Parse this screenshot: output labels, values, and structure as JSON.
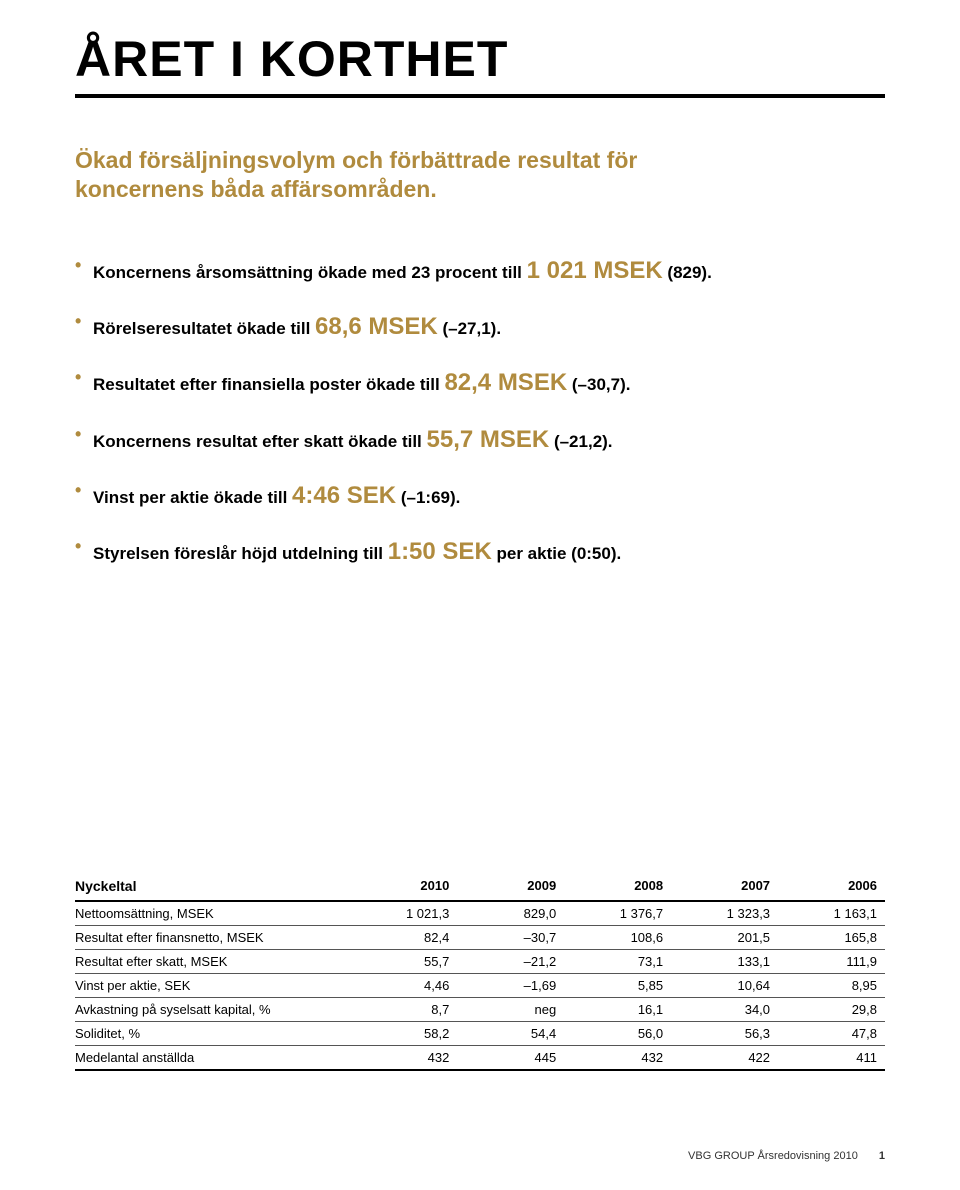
{
  "title": "ÅRET I KORTHET",
  "intro": "Ökad försäljningsvolym och förbättrade resultat för koncernens båda affärsområden.",
  "bullets": [
    {
      "pre": "Koncernens årsomsättning ökade med 23 procent till ",
      "hi": "1 021 MSEK",
      "post": " (829)."
    },
    {
      "pre": "Rörelseresultatet ökade till ",
      "hi": "68,6 MSEK",
      "post": " (–27,1)."
    },
    {
      "pre": "Resultatet efter finansiella poster ökade till ",
      "hi": "82,4 MSEK",
      "post": " (–30,7)."
    },
    {
      "pre": "Koncernens resultat efter skatt ökade till ",
      "hi": "55,7 MSEK",
      "post": " (–21,2)."
    },
    {
      "pre": "Vinst per aktie ökade till ",
      "hi": "4:46 SEK",
      "post": " (–1:69)."
    },
    {
      "pre": "Styrelsen föreslår höjd utdelning till ",
      "hi": "1:50 SEK",
      "post": " per aktie (0:50)."
    }
  ],
  "table": {
    "header_label": "Nyckeltal",
    "columns": [
      "2010",
      "2009",
      "2008",
      "2007",
      "2006"
    ],
    "col_widths_pct": [
      34,
      13.2,
      13.2,
      13.2,
      13.2,
      13.2
    ],
    "rows": [
      {
        "label": "Nettoomsättning, MSEK",
        "cells": [
          "1 021,3",
          "829,0",
          "1 376,7",
          "1 323,3",
          "1 163,1"
        ]
      },
      {
        "label": "Resultat efter finansnetto, MSEK",
        "cells": [
          "82,4",
          "–30,7",
          "108,6",
          "201,5",
          "165,8"
        ]
      },
      {
        "label": "Resultat efter skatt, MSEK",
        "cells": [
          "55,7",
          "–21,2",
          "73,1",
          "133,1",
          "111,9"
        ]
      },
      {
        "label": "Vinst per aktie, SEK",
        "cells": [
          "4,46",
          "–1,69",
          "5,85",
          "10,64",
          "8,95"
        ]
      },
      {
        "label": "Avkastning på syselsatt kapital, %",
        "cells": [
          "8,7",
          "neg",
          "16,1",
          "34,0",
          "29,8"
        ]
      },
      {
        "label": "Soliditet, %",
        "cells": [
          "58,2",
          "54,4",
          "56,0",
          "56,3",
          "47,8"
        ]
      },
      {
        "label": "Medelantal anställda",
        "cells": [
          "432",
          "445",
          "432",
          "422",
          "411"
        ]
      }
    ]
  },
  "footer": {
    "text": "VBG GROUP Årsredovisning 2010",
    "page": "1"
  },
  "colors": {
    "accent": "#b08b3e",
    "text": "#000000",
    "rule": "#000000",
    "row_border": "#555555",
    "background": "#ffffff"
  },
  "typography": {
    "title_fontsize": 50,
    "intro_fontsize": 23,
    "bullet_fontsize": 17,
    "highlight_fontsize": 24,
    "table_fontsize": 13,
    "footer_fontsize": 11
  }
}
